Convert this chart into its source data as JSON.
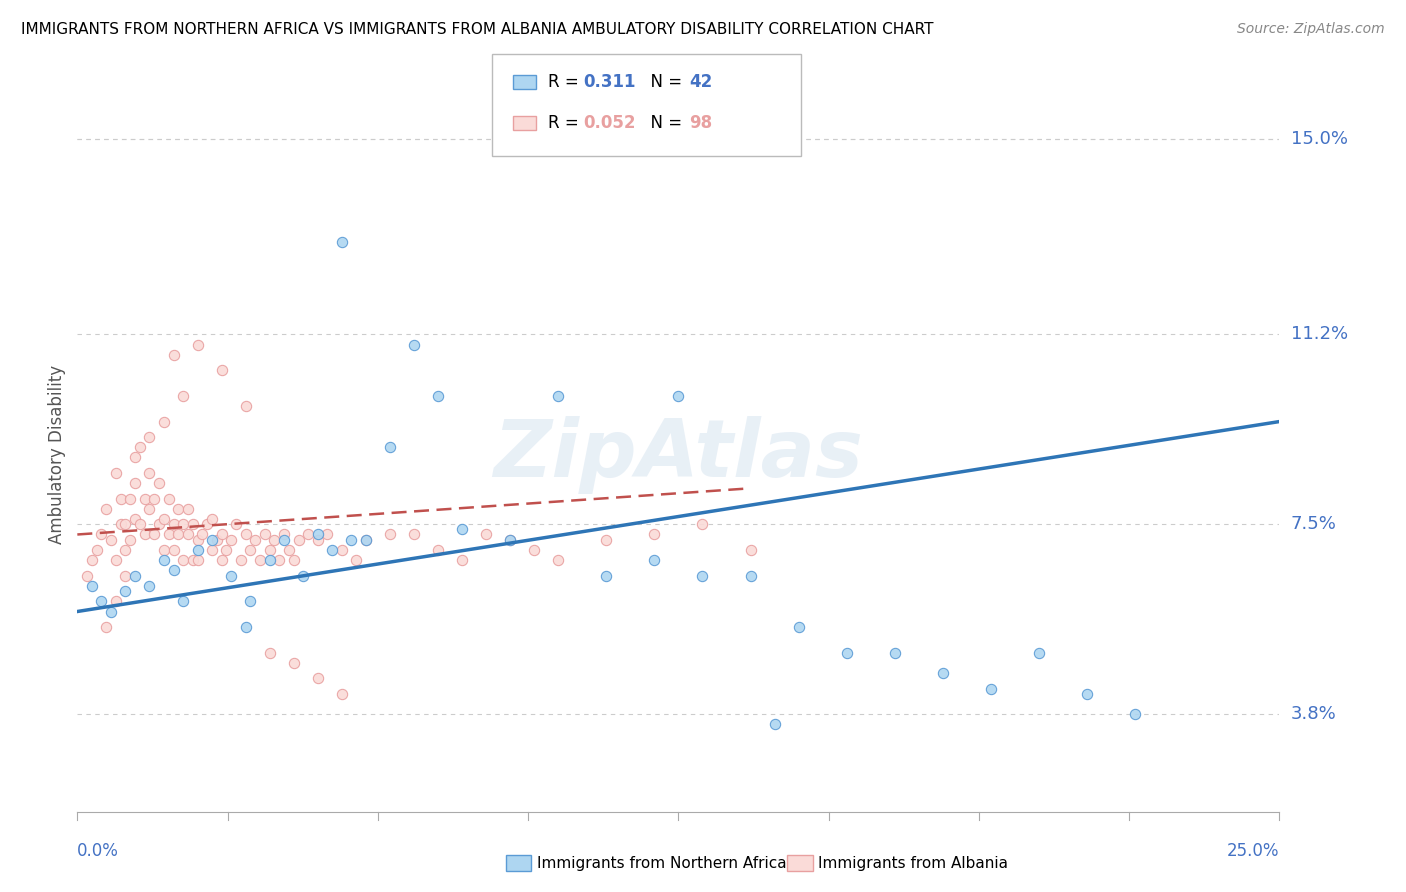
{
  "title": "IMMIGRANTS FROM NORTHERN AFRICA VS IMMIGRANTS FROM ALBANIA AMBULATORY DISABILITY CORRELATION CHART",
  "source": "Source: ZipAtlas.com",
  "ylabel": "Ambulatory Disability",
  "yticks": [
    0.038,
    0.075,
    0.112,
    0.15
  ],
  "ytick_labels": [
    "3.8%",
    "7.5%",
    "11.2%",
    "15.0%"
  ],
  "xmin": 0.0,
  "xmax": 0.25,
  "ymin": 0.019,
  "ymax": 0.158,
  "color_blue_fill": "#AED6F1",
  "color_blue_edge": "#5B9BD5",
  "color_pink_fill": "#FADBD8",
  "color_pink_edge": "#E8A0A0",
  "color_blue_line": "#2E75B6",
  "color_pink_line": "#C0504D",
  "color_axis_label": "#4472C4",
  "watermark_color": "#D6E4F0",
  "blue_x": [
    0.003,
    0.005,
    0.007,
    0.01,
    0.012,
    0.015,
    0.018,
    0.02,
    0.022,
    0.025,
    0.028,
    0.032,
    0.036,
    0.04,
    0.043,
    0.047,
    0.05,
    0.053,
    0.057,
    0.06,
    0.065,
    0.07,
    0.08,
    0.09,
    0.1,
    0.11,
    0.12,
    0.13,
    0.14,
    0.15,
    0.16,
    0.17,
    0.18,
    0.19,
    0.2,
    0.21,
    0.22,
    0.125,
    0.145,
    0.055,
    0.075,
    0.035
  ],
  "blue_y": [
    0.063,
    0.06,
    0.058,
    0.062,
    0.065,
    0.063,
    0.068,
    0.066,
    0.06,
    0.07,
    0.072,
    0.065,
    0.06,
    0.068,
    0.072,
    0.065,
    0.073,
    0.07,
    0.072,
    0.072,
    0.09,
    0.11,
    0.074,
    0.072,
    0.1,
    0.065,
    0.068,
    0.065,
    0.065,
    0.055,
    0.05,
    0.05,
    0.046,
    0.043,
    0.05,
    0.042,
    0.038,
    0.1,
    0.036,
    0.13,
    0.1,
    0.055
  ],
  "pink_x": [
    0.002,
    0.003,
    0.004,
    0.005,
    0.006,
    0.007,
    0.008,
    0.008,
    0.009,
    0.009,
    0.01,
    0.01,
    0.011,
    0.011,
    0.012,
    0.012,
    0.013,
    0.013,
    0.014,
    0.014,
    0.015,
    0.015,
    0.016,
    0.016,
    0.017,
    0.017,
    0.018,
    0.018,
    0.019,
    0.019,
    0.02,
    0.02,
    0.021,
    0.021,
    0.022,
    0.022,
    0.023,
    0.023,
    0.024,
    0.024,
    0.025,
    0.025,
    0.026,
    0.027,
    0.028,
    0.028,
    0.029,
    0.03,
    0.03,
    0.031,
    0.032,
    0.033,
    0.034,
    0.035,
    0.036,
    0.037,
    0.038,
    0.039,
    0.04,
    0.041,
    0.042,
    0.043,
    0.044,
    0.045,
    0.046,
    0.048,
    0.05,
    0.052,
    0.055,
    0.058,
    0.06,
    0.065,
    0.07,
    0.075,
    0.08,
    0.085,
    0.09,
    0.095,
    0.1,
    0.11,
    0.12,
    0.13,
    0.14,
    0.025,
    0.03,
    0.035,
    0.02,
    0.022,
    0.018,
    0.015,
    0.012,
    0.01,
    0.008,
    0.006,
    0.04,
    0.045,
    0.05,
    0.055
  ],
  "pink_y": [
    0.065,
    0.068,
    0.07,
    0.073,
    0.078,
    0.072,
    0.085,
    0.068,
    0.08,
    0.075,
    0.07,
    0.075,
    0.072,
    0.08,
    0.076,
    0.083,
    0.075,
    0.09,
    0.08,
    0.073,
    0.085,
    0.078,
    0.08,
    0.073,
    0.075,
    0.083,
    0.07,
    0.076,
    0.073,
    0.08,
    0.075,
    0.07,
    0.073,
    0.078,
    0.068,
    0.075,
    0.073,
    0.078,
    0.068,
    0.075,
    0.072,
    0.068,
    0.073,
    0.075,
    0.07,
    0.076,
    0.072,
    0.068,
    0.073,
    0.07,
    0.072,
    0.075,
    0.068,
    0.073,
    0.07,
    0.072,
    0.068,
    0.073,
    0.07,
    0.072,
    0.068,
    0.073,
    0.07,
    0.068,
    0.072,
    0.073,
    0.072,
    0.073,
    0.07,
    0.068,
    0.072,
    0.073,
    0.073,
    0.07,
    0.068,
    0.073,
    0.072,
    0.07,
    0.068,
    0.072,
    0.073,
    0.075,
    0.07,
    0.11,
    0.105,
    0.098,
    0.108,
    0.1,
    0.095,
    0.092,
    0.088,
    0.065,
    0.06,
    0.055,
    0.05,
    0.048,
    0.045,
    0.042
  ],
  "blue_trend_x": [
    0.0,
    0.25
  ],
  "blue_trend_y": [
    0.058,
    0.095
  ],
  "pink_trend_x": [
    0.0,
    0.14
  ],
  "pink_trend_y": [
    0.073,
    0.082
  ]
}
